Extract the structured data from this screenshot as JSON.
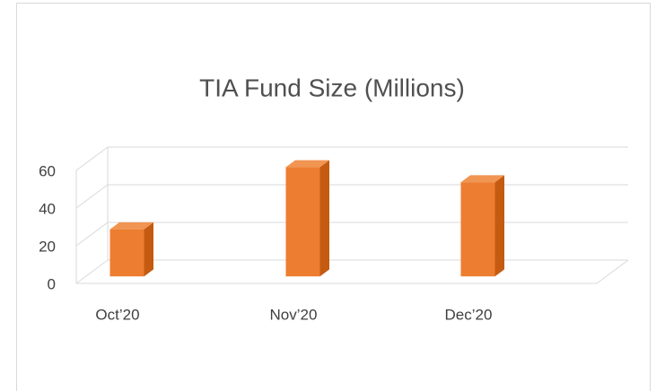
{
  "chart_data": {
    "type": "bar3d",
    "title": "TIA Fund Size (Millions)",
    "categories": [
      "Oct’20",
      "Nov’20",
      "Dec’20"
    ],
    "values": [
      25,
      58,
      50
    ],
    "color": "#ED7D31",
    "ylim": [
      0,
      60
    ],
    "yticks": [
      0,
      20,
      40,
      60
    ],
    "grid": true
  }
}
